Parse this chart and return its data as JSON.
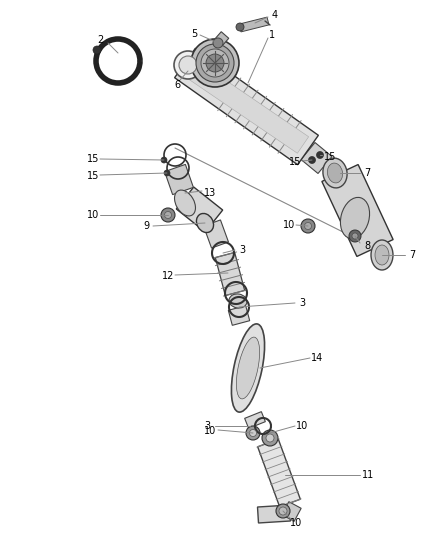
{
  "bg_color": "#ffffff",
  "fig_width": 4.38,
  "fig_height": 5.33,
  "dpi": 100,
  "line_color": "#333333",
  "label_color": "#000000",
  "leader_color": "#888888"
}
